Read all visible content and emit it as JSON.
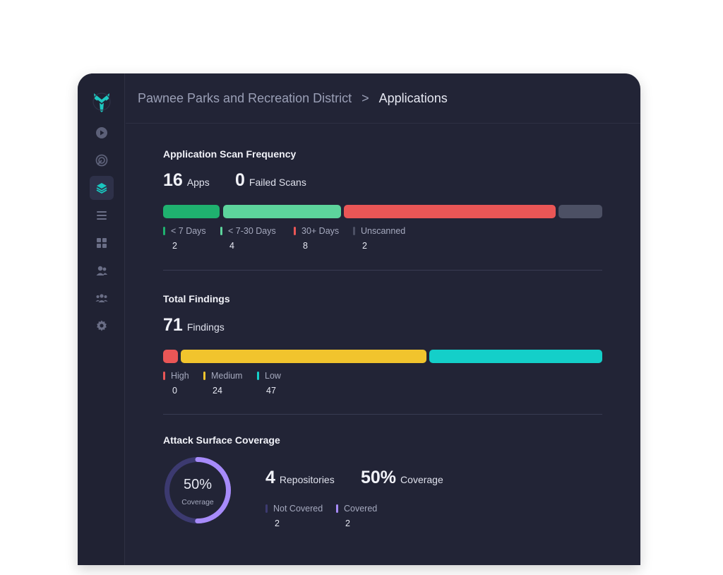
{
  "breadcrumb": {
    "parent": "Pawnee Parks and Recreation District",
    "separator": ">",
    "current": "Applications"
  },
  "sidebar": {
    "items": [
      {
        "name": "play-icon",
        "active": false
      },
      {
        "name": "radar-icon",
        "active": false
      },
      {
        "name": "layers-icon",
        "active": true
      },
      {
        "name": "list-icon",
        "active": false
      },
      {
        "name": "grid-icon",
        "active": false
      },
      {
        "name": "user-group-icon",
        "active": false
      },
      {
        "name": "team-icon",
        "active": false
      },
      {
        "name": "gear-icon",
        "active": false
      }
    ]
  },
  "scan_frequency": {
    "title": "Application Scan Frequency",
    "apps_count": "16",
    "apps_label": "Apps",
    "failed_count": "0",
    "failed_label": "Failed Scans",
    "segments": [
      {
        "label": "< 7 Days",
        "value": "2",
        "color": "#1fb16f"
      },
      {
        "label": "< 7-30 Days",
        "value": "4",
        "color": "#5dd49c"
      },
      {
        "label": "30+ Days",
        "value": "8",
        "color": "#ea5656"
      },
      {
        "label": "Unscanned",
        "value": "2",
        "color": "#4c5064"
      }
    ]
  },
  "findings": {
    "title": "Total Findings",
    "count": "71",
    "label": "Findings",
    "segments": [
      {
        "label": "High",
        "value": "0",
        "color": "#ea5656"
      },
      {
        "label": "Medium",
        "value": "24",
        "color": "#f1c42d"
      },
      {
        "label": "Low",
        "value": "47",
        "color": "#14cfc9"
      }
    ]
  },
  "coverage": {
    "title": "Attack Surface Coverage",
    "donut_pct": "50%",
    "donut_label": "Coverage",
    "repos_count": "4",
    "repos_label": "Repositories",
    "coverage_pct": "50%",
    "coverage_label": "Coverage",
    "fraction": 0.5,
    "segments": [
      {
        "label": "Not Covered",
        "value": "2",
        "color": "#3c3a70"
      },
      {
        "label": "Covered",
        "value": "2",
        "color": "#a78bfa"
      }
    ]
  }
}
